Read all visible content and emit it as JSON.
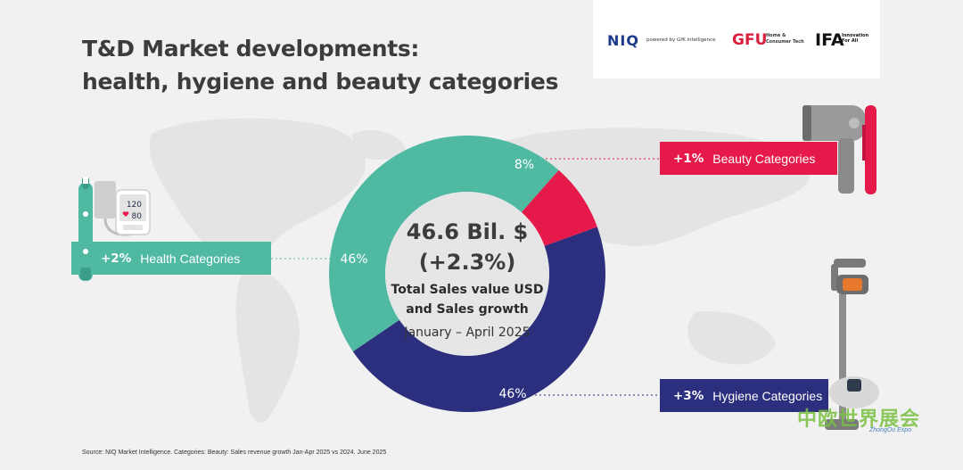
{
  "header": {
    "title_line1": "T&D Market developments:",
    "title_line2": "health, hygiene and beauty categories"
  },
  "logos": {
    "niq": "NIQ",
    "niq_sub": "powered by GfK intelligence",
    "gfu": "GFU",
    "gfu_sub": "Home & Consumer Tech",
    "ifa": "IFA",
    "ifa_sub": "Innovation For All"
  },
  "center": {
    "value": "46.6 Bil. $",
    "growth": "(+2.3%)",
    "desc_line1": "Total Sales value USD",
    "desc_line2": "and Sales growth",
    "period": "January – April 2025"
  },
  "chart_data": {
    "type": "pie",
    "donut": true,
    "categories": [
      "Beauty Categories",
      "Hygiene Categories",
      "Health Categories"
    ],
    "values": [
      8,
      46,
      46
    ],
    "value_labels": [
      "8%",
      "46%",
      "46%"
    ],
    "growth_labels": [
      "+1%",
      "+3%",
      "+2%"
    ],
    "colors": [
      "#e5194a",
      "#2c2f7d",
      "#4fb9a2"
    ]
  },
  "callouts": {
    "beauty": {
      "growth": "+1%",
      "label": "Beauty Categories"
    },
    "health": {
      "growth": "+2%",
      "label": "Health Categories"
    },
    "hygiene": {
      "growth": "+3%",
      "label": "Hygiene Categories"
    }
  },
  "device": {
    "bp_top": "120",
    "bp_bottom": "80"
  },
  "footer": {
    "source": "Source: NIQ Market Intelligence. Categories: Beauty: Sales revenue growth Jan-Apr 2025 vs 2024. June 2025"
  },
  "watermark": {
    "text": "中欧世界展会",
    "sub": "ZhongOu Expo"
  }
}
